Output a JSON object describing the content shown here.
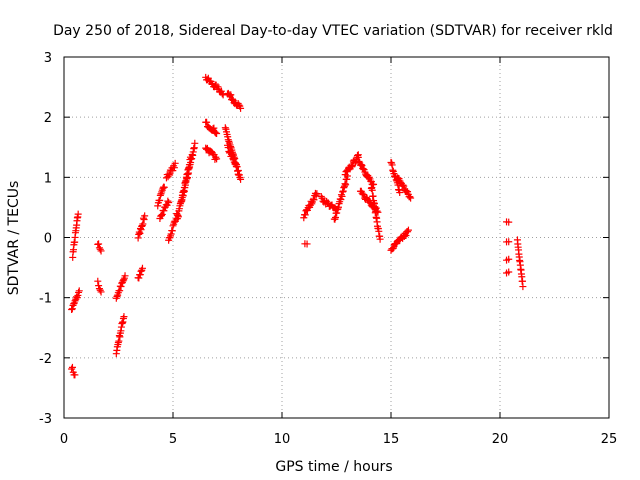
{
  "chart_data": {
    "type": "scatter",
    "title": "Day 250 of 2018, Sidereal Day-to-day VTEC variation (SDTVAR) for receiver rkld",
    "xlabel": "GPS time / hours",
    "ylabel": "SDTVAR / TECUs",
    "xlim": [
      0,
      25
    ],
    "ylim": [
      -3,
      3
    ],
    "xticks": [
      "0",
      "5",
      "10",
      "15",
      "20",
      "25"
    ],
    "yticks": [
      "-3",
      "-2",
      "-1",
      "0",
      "1",
      "2",
      "3"
    ],
    "grid": true,
    "marker": "+",
    "color": "#ff0000",
    "series": [
      {
        "name": "SDTVAR",
        "segments": [
          {
            "x0": 0.35,
            "x1": 0.5,
            "y0": -2.15,
            "y1": -2.3
          },
          {
            "x0": 0.35,
            "x1": 0.7,
            "y0": -1.2,
            "y1": -0.9
          },
          {
            "x0": 0.4,
            "x1": 0.65,
            "y0": -0.3,
            "y1": 0.4
          },
          {
            "x0": 1.55,
            "x1": 1.7,
            "y0": -0.75,
            "y1": -0.9
          },
          {
            "x0": 1.55,
            "x1": 1.7,
            "y0": -0.1,
            "y1": -0.25
          },
          {
            "x0": 2.4,
            "x1": 2.75,
            "y0": -1.9,
            "y1": -1.3
          },
          {
            "x0": 2.4,
            "x1": 2.8,
            "y0": -1.0,
            "y1": -0.65
          },
          {
            "x0": 3.4,
            "x1": 3.6,
            "y0": -0.7,
            "y1": -0.5
          },
          {
            "x0": 3.4,
            "x1": 3.7,
            "y0": 0.0,
            "y1": 0.35
          },
          {
            "x0": 4.3,
            "x1": 4.6,
            "y0": 0.55,
            "y1": 0.85
          },
          {
            "x0": 4.4,
            "x1": 4.8,
            "y0": 0.35,
            "y1": 0.6
          },
          {
            "x0": 4.7,
            "x1": 5.1,
            "y0": 1.0,
            "y1": 1.2
          },
          {
            "x0": 4.8,
            "x1": 5.2,
            "y0": -0.05,
            "y1": 0.4
          },
          {
            "x0": 5.2,
            "x1": 5.8,
            "y0": 0.3,
            "y1": 1.3
          },
          {
            "x0": 5.4,
            "x1": 6.0,
            "y0": 0.6,
            "y1": 1.55
          },
          {
            "x0": 6.5,
            "x1": 7.0,
            "y0": 1.5,
            "y1": 1.3
          },
          {
            "x0": 6.5,
            "x1": 7.0,
            "y0": 1.9,
            "y1": 1.75
          },
          {
            "x0": 6.5,
            "x1": 7.3,
            "y0": 2.65,
            "y1": 2.4
          },
          {
            "x0": 7.5,
            "x1": 8.1,
            "y0": 2.4,
            "y1": 2.15
          },
          {
            "x0": 7.4,
            "x1": 8.1,
            "y0": 1.8,
            "y1": 0.95
          },
          {
            "x0": 7.5,
            "x1": 8.0,
            "y0": 1.5,
            "y1": 1.1
          },
          {
            "x0": 11.05,
            "x1": 11.15,
            "y0": -0.1,
            "y1": -0.1
          },
          {
            "x0": 11.0,
            "x1": 11.6,
            "y0": 0.35,
            "y1": 0.75
          },
          {
            "x0": 11.8,
            "x1": 12.5,
            "y0": 0.65,
            "y1": 0.45
          },
          {
            "x0": 12.4,
            "x1": 13.0,
            "y0": 0.3,
            "y1": 1.0
          },
          {
            "x0": 12.9,
            "x1": 13.5,
            "y0": 1.05,
            "y1": 1.35
          },
          {
            "x0": 13.5,
            "x1": 14.2,
            "y0": 1.3,
            "y1": 0.85
          },
          {
            "x0": 13.6,
            "x1": 14.4,
            "y0": 0.75,
            "y1": 0.45
          },
          {
            "x0": 14.1,
            "x1": 14.5,
            "y0": 0.85,
            "y1": -0.05
          },
          {
            "x0": 15.0,
            "x1": 15.8,
            "y0": -0.2,
            "y1": 0.1
          },
          {
            "x0": 15.0,
            "x1": 15.4,
            "y0": 1.25,
            "y1": 0.75
          },
          {
            "x0": 15.3,
            "x1": 15.9,
            "y0": 1.0,
            "y1": 0.65
          },
          {
            "x0": 20.3,
            "x1": 20.4,
            "y0": 0.25,
            "y1": 0.25
          },
          {
            "x0": 20.3,
            "x1": 20.4,
            "y0": -0.05,
            "y1": -0.05
          },
          {
            "x0": 20.3,
            "x1": 20.4,
            "y0": -0.35,
            "y1": -0.35
          },
          {
            "x0": 20.3,
            "x1": 20.4,
            "y0": -0.6,
            "y1": -0.6
          },
          {
            "x0": 20.8,
            "x1": 21.05,
            "y0": -0.05,
            "y1": -0.8
          }
        ]
      }
    ]
  }
}
